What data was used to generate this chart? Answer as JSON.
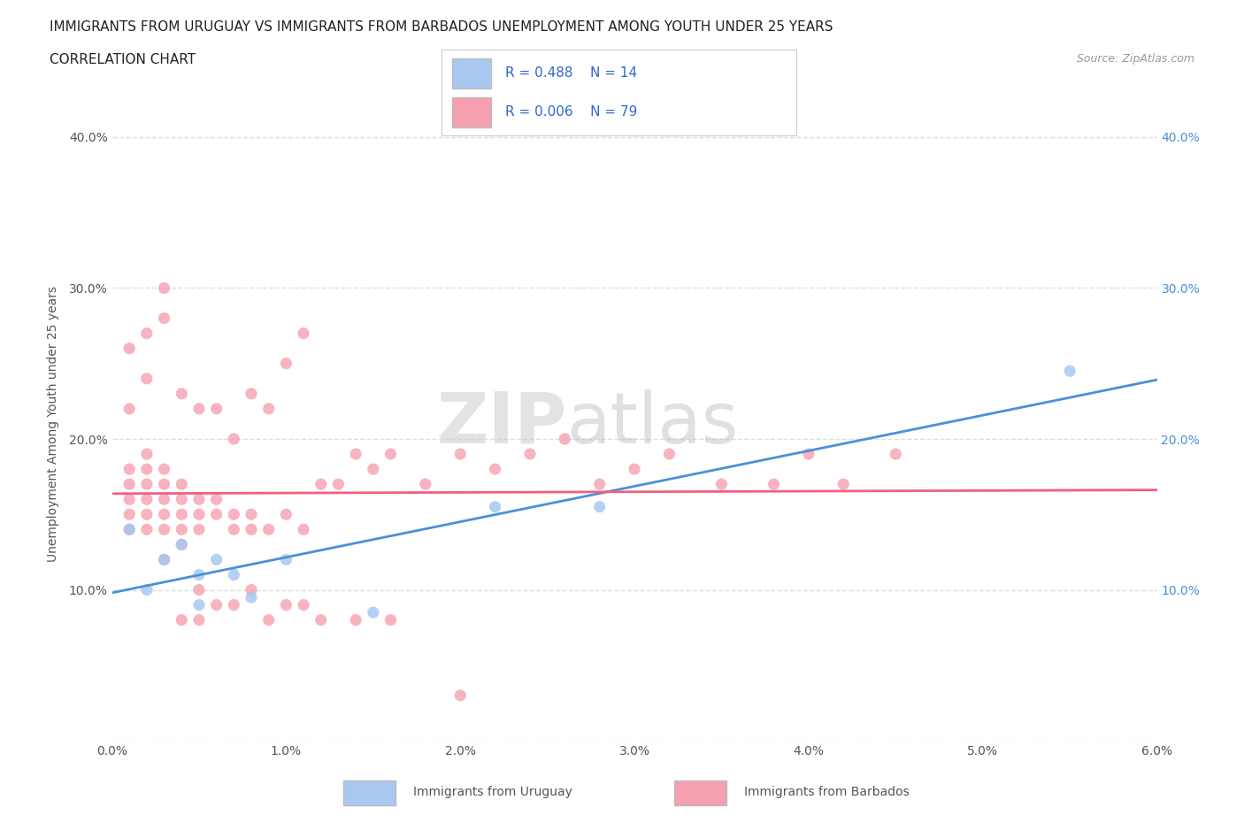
{
  "title_line1": "IMMIGRANTS FROM URUGUAY VS IMMIGRANTS FROM BARBADOS UNEMPLOYMENT AMONG YOUTH UNDER 25 YEARS",
  "title_line2": "CORRELATION CHART",
  "source_text": "Source: ZipAtlas.com",
  "ylabel": "Unemployment Among Youth under 25 years",
  "xlim": [
    0.0,
    0.06
  ],
  "ylim": [
    0.0,
    0.42
  ],
  "xticks": [
    0.0,
    0.01,
    0.02,
    0.03,
    0.04,
    0.05,
    0.06
  ],
  "xtick_labels": [
    "0.0%",
    "1.0%",
    "2.0%",
    "3.0%",
    "4.0%",
    "5.0%",
    "6.0%"
  ],
  "ytick_labels": [
    "",
    "10.0%",
    "20.0%",
    "30.0%",
    "40.0%"
  ],
  "yticks": [
    0.0,
    0.1,
    0.2,
    0.3,
    0.4
  ],
  "legend_r_uruguay": "R = 0.488",
  "legend_n_uruguay": "N = 14",
  "legend_r_barbados": "R = 0.006",
  "legend_n_barbados": "N = 79",
  "color_uruguay": "#a8c8f0",
  "color_barbados": "#f5a0b0",
  "color_uruguay_line": "#4a90d9",
  "color_barbados_line": "#f06080",
  "watermark_zip": "ZIP",
  "watermark_atlas": "atlas",
  "uruguay_scatter_x": [
    0.001,
    0.002,
    0.003,
    0.004,
    0.005,
    0.005,
    0.006,
    0.007,
    0.008,
    0.01,
    0.015,
    0.022,
    0.028,
    0.055
  ],
  "uruguay_scatter_y": [
    0.14,
    0.1,
    0.12,
    0.13,
    0.09,
    0.11,
    0.12,
    0.11,
    0.095,
    0.12,
    0.085,
    0.155,
    0.155,
    0.245
  ],
  "barbados_scatter_x": [
    0.001,
    0.001,
    0.001,
    0.001,
    0.001,
    0.002,
    0.002,
    0.002,
    0.002,
    0.002,
    0.002,
    0.003,
    0.003,
    0.003,
    0.003,
    0.003,
    0.003,
    0.004,
    0.004,
    0.004,
    0.004,
    0.004,
    0.005,
    0.005,
    0.005,
    0.005,
    0.006,
    0.006,
    0.006,
    0.007,
    0.007,
    0.007,
    0.008,
    0.008,
    0.008,
    0.009,
    0.009,
    0.01,
    0.01,
    0.011,
    0.011,
    0.012,
    0.013,
    0.014,
    0.015,
    0.016,
    0.018,
    0.02,
    0.022,
    0.024,
    0.026,
    0.028,
    0.03,
    0.032,
    0.035,
    0.038,
    0.04,
    0.042,
    0.045,
    0.001,
    0.001,
    0.002,
    0.002,
    0.003,
    0.003,
    0.004,
    0.004,
    0.005,
    0.005,
    0.006,
    0.007,
    0.008,
    0.009,
    0.01,
    0.011,
    0.012,
    0.014,
    0.016,
    0.02
  ],
  "barbados_scatter_y": [
    0.14,
    0.15,
    0.16,
    0.17,
    0.18,
    0.14,
    0.15,
    0.16,
    0.17,
    0.18,
    0.19,
    0.12,
    0.14,
    0.15,
    0.16,
    0.17,
    0.18,
    0.13,
    0.14,
    0.15,
    0.16,
    0.17,
    0.14,
    0.15,
    0.16,
    0.22,
    0.15,
    0.16,
    0.22,
    0.14,
    0.15,
    0.2,
    0.14,
    0.15,
    0.23,
    0.14,
    0.22,
    0.15,
    0.25,
    0.14,
    0.27,
    0.17,
    0.17,
    0.19,
    0.18,
    0.19,
    0.17,
    0.19,
    0.18,
    0.19,
    0.2,
    0.17,
    0.18,
    0.19,
    0.17,
    0.17,
    0.19,
    0.17,
    0.19,
    0.22,
    0.26,
    0.24,
    0.27,
    0.28,
    0.3,
    0.23,
    0.08,
    0.08,
    0.1,
    0.09,
    0.09,
    0.1,
    0.08,
    0.09,
    0.09,
    0.08,
    0.08,
    0.08,
    0.03
  ],
  "background_color": "#ffffff",
  "grid_color": "#dddddd"
}
